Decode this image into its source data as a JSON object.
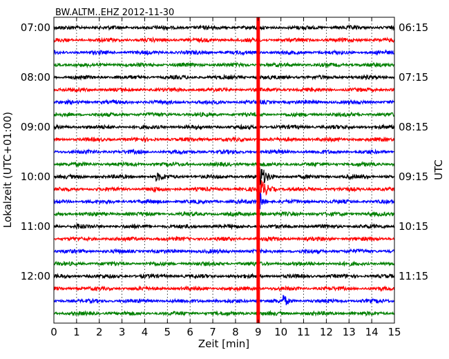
{
  "chart_data": {
    "type": "line",
    "title": "BW.ALTM..EHZ 2012-11-30",
    "xlabel": "Zeit  [min]",
    "ylabel_left": "Lokalzeit (UTC+01:00)",
    "ylabel_right": "UTC",
    "xlim": [
      0,
      15
    ],
    "x_ticks": [
      0,
      1,
      2,
      3,
      4,
      5,
      6,
      7,
      8,
      9,
      10,
      11,
      12,
      13,
      14,
      15
    ],
    "x_tick_labels": [
      "0",
      "1",
      "2",
      "3",
      "4",
      "5",
      "6",
      "7",
      "8",
      "9",
      "10",
      "11",
      "12",
      "13",
      "14",
      "15"
    ],
    "grid": "vertical dotted",
    "trace_interval_min": 15,
    "trace_colors": [
      "#000000",
      "#ff0000",
      "#0000ff",
      "#008000"
    ],
    "left_labels": [
      {
        "trace": 0,
        "text": "07:00"
      },
      {
        "trace": 4,
        "text": "08:00"
      },
      {
        "trace": 8,
        "text": "09:00"
      },
      {
        "trace": 12,
        "text": "10:00"
      },
      {
        "trace": 16,
        "text": "11:00"
      },
      {
        "trace": 20,
        "text": "12:00"
      }
    ],
    "right_labels": [
      {
        "trace": 0,
        "text": "06:15"
      },
      {
        "trace": 4,
        "text": "07:15"
      },
      {
        "trace": 8,
        "text": "08:15"
      },
      {
        "trace": 12,
        "text": "09:15"
      },
      {
        "trace": 16,
        "text": "10:15"
      },
      {
        "trace": 20,
        "text": "11:15"
      }
    ],
    "trace_count": 24,
    "events": [
      {
        "trace": 12,
        "x_min": 9.0,
        "x_max": 9.7,
        "amplitude": "large"
      },
      {
        "trace": 13,
        "x_min": 9.0,
        "x_max": 9.8,
        "amplitude": "large"
      },
      {
        "trace": 14,
        "x_min": 9.0,
        "x_max": 9.4,
        "amplitude": "large"
      },
      {
        "trace": 15,
        "x_min": 9.0,
        "x_max": 9.3,
        "amplitude": "medium"
      },
      {
        "trace": 12,
        "x_min": 4.5,
        "x_max": 5.2,
        "amplitude": "small"
      },
      {
        "trace": 13,
        "x_min": 4.4,
        "x_max": 4.7,
        "amplitude": "small"
      },
      {
        "trace": 16,
        "x_min": 1.0,
        "x_max": 1.3,
        "amplitude": "small"
      },
      {
        "trace": 22,
        "x_min": 10.1,
        "x_max": 10.5,
        "amplitude": "medium"
      }
    ],
    "marker_band": {
      "x": 9.0,
      "color": "#ff0000"
    }
  }
}
